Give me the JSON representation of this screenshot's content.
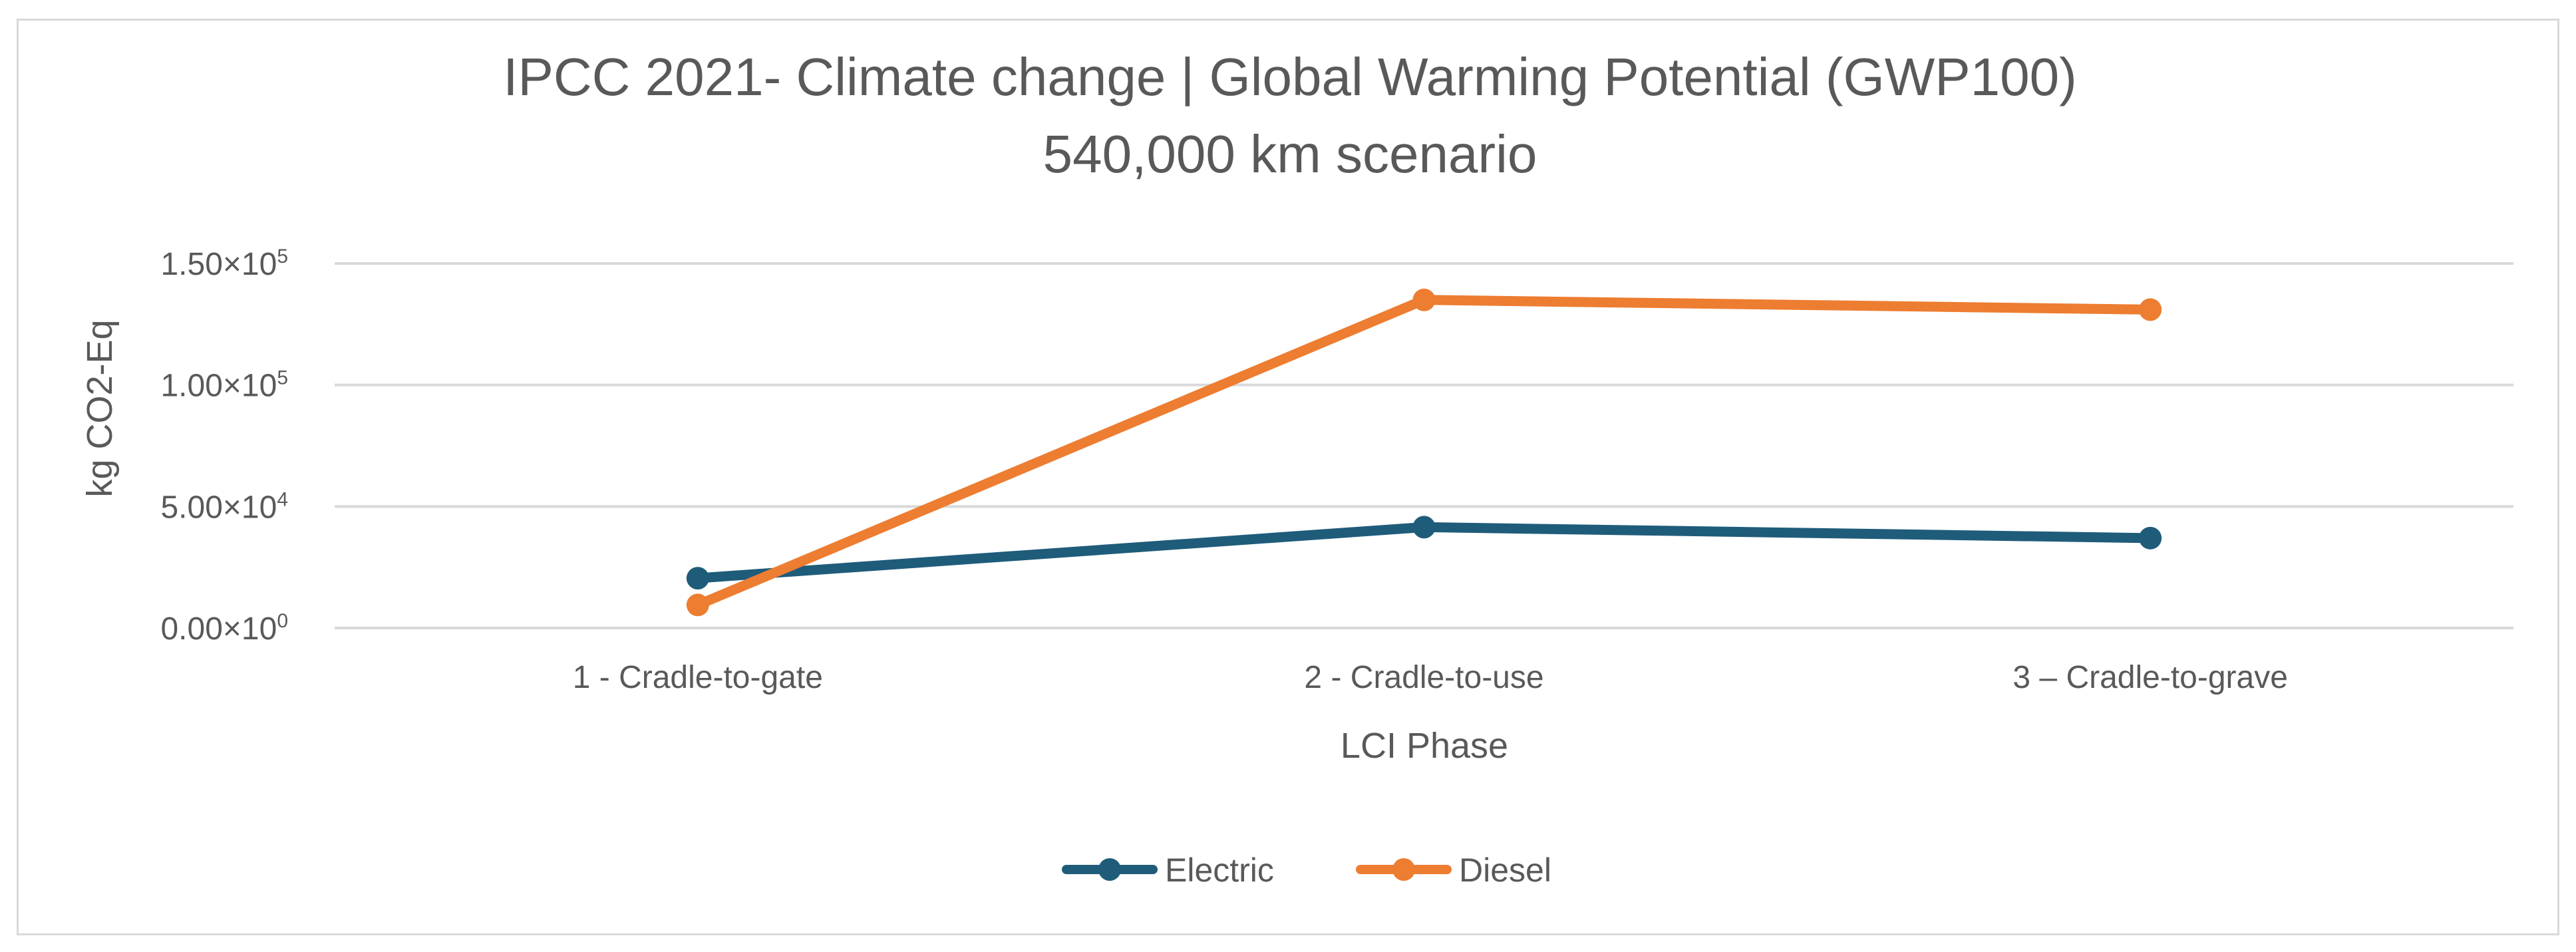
{
  "chart_data": {
    "type": "line",
    "title": "IPCC 2021- Climate change | Global Warming Potential (GWP100)",
    "subtitle": "540,000 km scenario",
    "xlabel": "LCI Phase",
    "ylabel": "kg CO2-Eq",
    "categories": [
      "1 - Cradle-to-gate",
      "2 - Cradle-to-use",
      "3 – Cradle-to-grave"
    ],
    "ylim": [
      0,
      150000
    ],
    "yticks": [
      {
        "value": 0,
        "label": "0.00×10",
        "exp": "0"
      },
      {
        "value": 50000,
        "label": "5.00×10",
        "exp": "4"
      },
      {
        "value": 100000,
        "label": "1.00×10",
        "exp": "5"
      },
      {
        "value": 150000,
        "label": "1.50×10",
        "exp": "5"
      }
    ],
    "grid": true,
    "legend_position": "bottom",
    "series": [
      {
        "name": "Electric",
        "color": "#1f5c7a",
        "values": [
          20500,
          41500,
          37000
        ]
      },
      {
        "name": "Diesel",
        "color": "#ed7d31",
        "values": [
          9500,
          135000,
          131000
        ]
      }
    ]
  }
}
